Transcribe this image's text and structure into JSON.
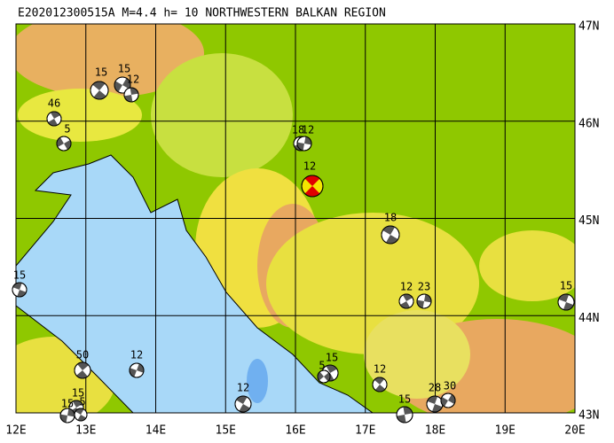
{
  "title": "E202012300515A  M=4.4  h= 10  NORTHWESTERN BALKAN REGION",
  "lon_labels": [
    "12E",
    "13E",
    "14E",
    "15E",
    "16E",
    "17E",
    "18E",
    "19E",
    "20E"
  ],
  "lat_labels": [
    "47N",
    "46N",
    "45N",
    "44N",
    "43N"
  ],
  "events": [
    {
      "depth": 15
    },
    {
      "depth": 46
    },
    {
      "depth": 5
    },
    {
      "depth": 15
    },
    {
      "depth": 15
    },
    {
      "depth": 12
    },
    {
      "depth": 18
    },
    {
      "depth": 12
    },
    {
      "depth": 12
    },
    {
      "depth": 18
    },
    {
      "depth": 12
    },
    {
      "depth": 23
    },
    {
      "depth": 15
    },
    {
      "depth": 50
    },
    {
      "depth": 12
    },
    {
      "depth": 12
    },
    {
      "depth": 15
    },
    {
      "depth": 5
    },
    {
      "depth": 12
    },
    {
      "depth": 15
    },
    {
      "depth": 28
    },
    {
      "depth": 30
    },
    {
      "depth": 15
    },
    {
      "depth": 5
    },
    {
      "depth": 15
    }
  ]
}
